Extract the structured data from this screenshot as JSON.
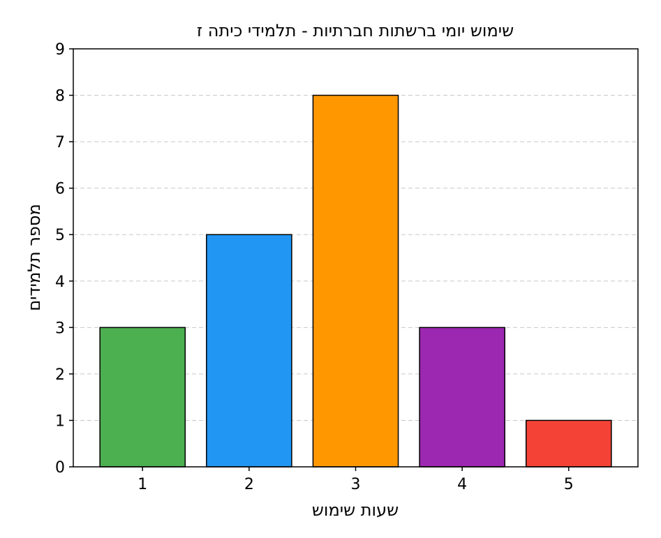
{
  "chart_data": {
    "type": "bar",
    "title": "שימוש יומי ברשתות חברתיות - תלמידי כיתה ז",
    "xlabel": "שעות שימוש",
    "ylabel": "מספר תלמידים",
    "categories": [
      "1",
      "2",
      "3",
      "4",
      "5"
    ],
    "values": [
      3,
      5,
      8,
      3,
      1
    ],
    "ylim": [
      0,
      9
    ],
    "yticks": [
      "0",
      "1",
      "2",
      "3",
      "4",
      "5",
      "6",
      "7",
      "8",
      "9"
    ],
    "grid": "horizontal dashed",
    "colors": [
      "#4caf50",
      "#2196f3",
      "#ff9800",
      "#9c27b0",
      "#f44336"
    ],
    "legend": "none"
  }
}
